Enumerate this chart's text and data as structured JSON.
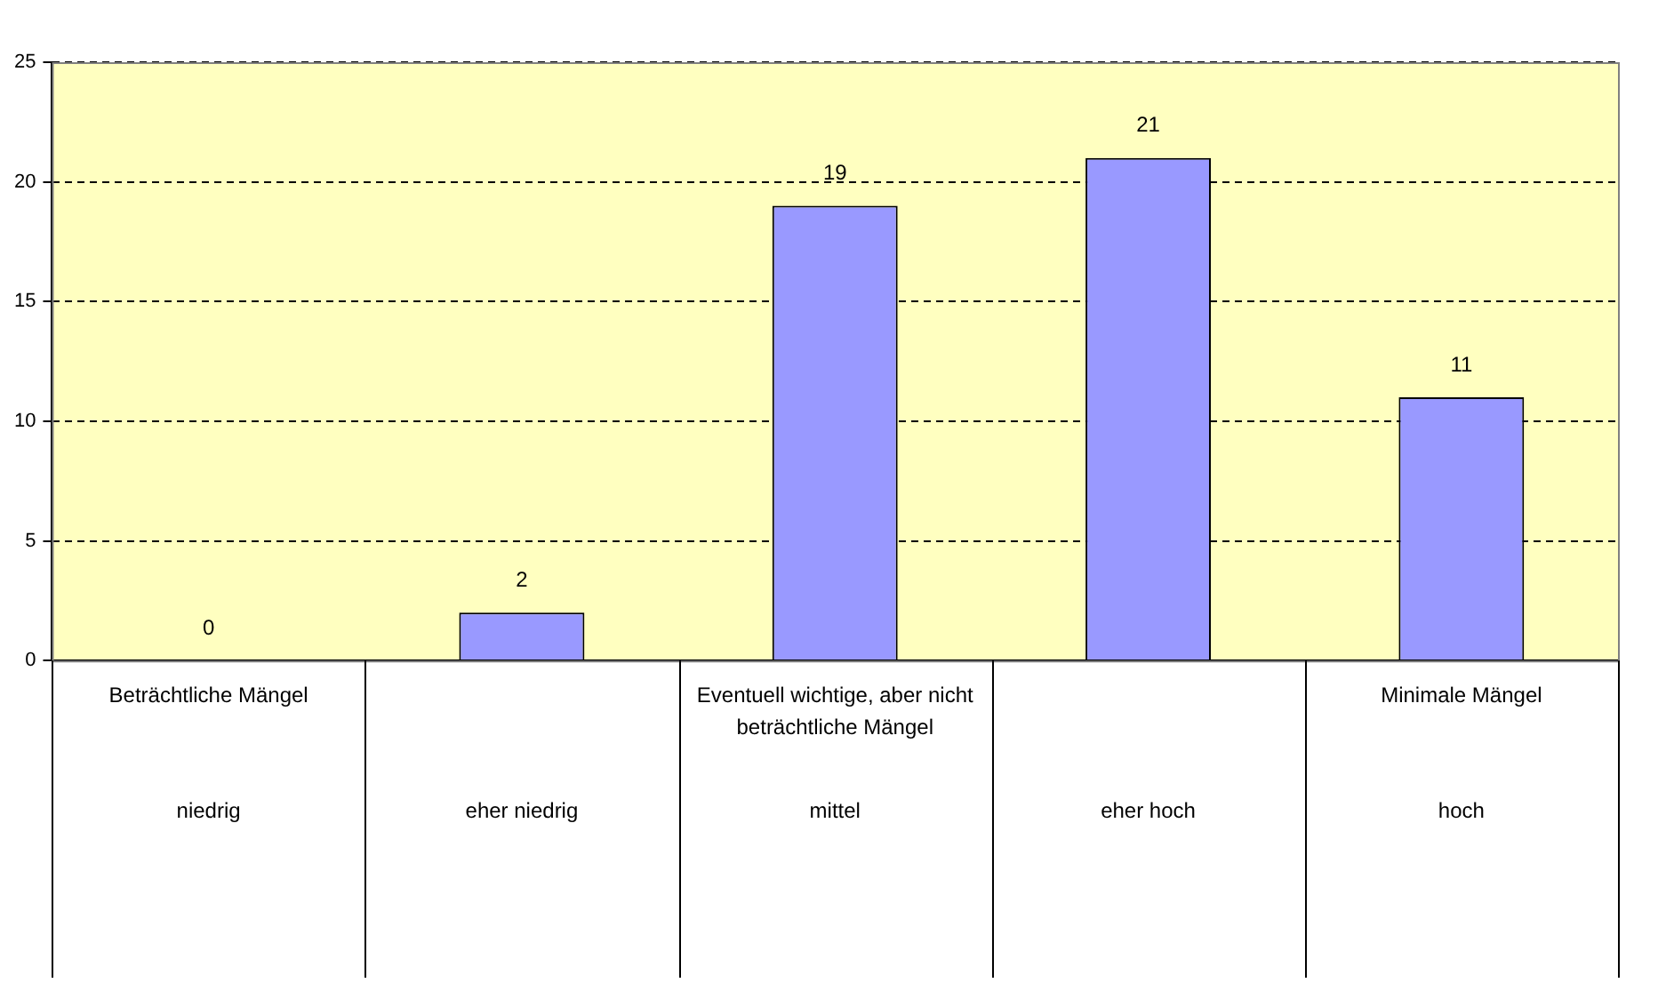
{
  "chart_data": {
    "type": "bar",
    "categories": [
      "niedrig",
      "eher niedrig",
      "mittel",
      "eher hoch",
      "hoch"
    ],
    "values": [
      0,
      2,
      19,
      21,
      11
    ],
    "color": "#9999ff",
    "ylim": [
      0,
      25
    ],
    "yticks": [
      0,
      5,
      10,
      15,
      20,
      25
    ],
    "grid": "y",
    "legend": false,
    "data_labels": true,
    "annotations": [
      "Beträchtliche Mängel",
      "Eventuell wichtige, aber nicht beträchtliche Mängel",
      "Minimale Mängel"
    ]
  }
}
